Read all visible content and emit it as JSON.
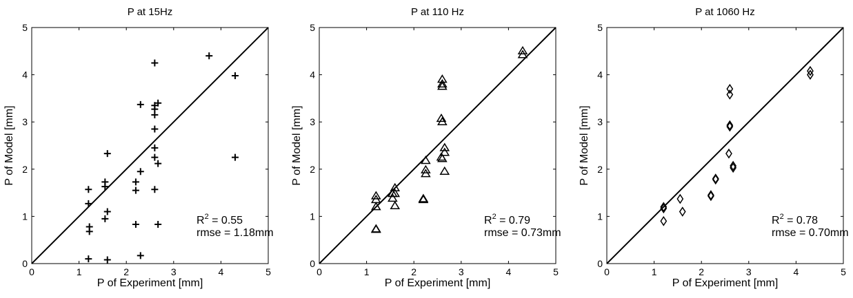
{
  "chart_data": [
    {
      "type": "scatter",
      "title": "P at 15Hz",
      "xlabel": "P of Experiment [mm]",
      "ylabel": "P of Model [mm]",
      "xlim": [
        0,
        5
      ],
      "ylim": [
        0,
        5
      ],
      "xticks": [
        "0",
        "1",
        "2",
        "3",
        "4",
        "5"
      ],
      "yticks": [
        "0",
        "1",
        "2",
        "3",
        "4",
        "5"
      ],
      "marker": "plus",
      "reference_line": "y = x",
      "grid": false,
      "stats": {
        "r2_label": "R",
        "r2_sup": "2",
        "r2_value": " = 0.55",
        "rmse": "rmse = 1.18mm"
      },
      "points": [
        [
          1.2,
          1.57
        ],
        [
          1.2,
          1.27
        ],
        [
          1.22,
          0.78
        ],
        [
          1.22,
          0.68
        ],
        [
          1.2,
          0.1
        ],
        [
          1.55,
          1.73
        ],
        [
          1.55,
          1.63
        ],
        [
          1.6,
          2.33
        ],
        [
          1.6,
          1.1
        ],
        [
          1.55,
          0.95
        ],
        [
          1.6,
          0.08
        ],
        [
          2.2,
          1.73
        ],
        [
          2.2,
          1.55
        ],
        [
          2.2,
          0.83
        ],
        [
          2.3,
          3.37
        ],
        [
          2.3,
          1.95
        ],
        [
          2.3,
          0.17
        ],
        [
          2.6,
          4.25
        ],
        [
          2.6,
          3.35
        ],
        [
          2.6,
          3.27
        ],
        [
          2.6,
          3.15
        ],
        [
          2.67,
          3.4
        ],
        [
          2.6,
          2.85
        ],
        [
          2.6,
          2.45
        ],
        [
          2.6,
          2.25
        ],
        [
          2.67,
          2.12
        ],
        [
          2.6,
          1.57
        ],
        [
          2.67,
          0.83
        ],
        [
          3.75,
          4.4
        ],
        [
          4.3,
          3.98
        ],
        [
          4.3,
          2.25
        ]
      ]
    },
    {
      "type": "scatter",
      "title": "P at 110 Hz",
      "xlabel": "P of Experiment [mm]",
      "ylabel": "P of Model [mm]",
      "xlim": [
        0,
        5
      ],
      "ylim": [
        0,
        5
      ],
      "xticks": [
        "0",
        "1",
        "2",
        "3",
        "4",
        "5"
      ],
      "yticks": [
        "0",
        "1",
        "2",
        "3",
        "4",
        "5"
      ],
      "marker": "triangle",
      "reference_line": "y = x",
      "grid": false,
      "stats": {
        "r2_label": "R",
        "r2_sup": "2",
        "r2_value": " = 0.79",
        "rmse": "rmse = 0.73mm"
      },
      "points": [
        [
          1.2,
          1.43
        ],
        [
          1.2,
          1.35
        ],
        [
          1.2,
          1.2
        ],
        [
          1.2,
          0.73
        ],
        [
          1.2,
          0.72
        ],
        [
          1.55,
          1.48
        ],
        [
          1.55,
          1.38
        ],
        [
          1.6,
          1.6
        ],
        [
          1.6,
          1.48
        ],
        [
          1.6,
          1.22
        ],
        [
          2.2,
          1.37
        ],
        [
          2.2,
          1.35
        ],
        [
          2.25,
          2.18
        ],
        [
          2.25,
          1.98
        ],
        [
          2.25,
          1.9
        ],
        [
          2.6,
          3.9
        ],
        [
          2.6,
          3.8
        ],
        [
          2.6,
          3.75
        ],
        [
          2.58,
          3.07
        ],
        [
          2.6,
          3.0
        ],
        [
          2.58,
          2.25
        ],
        [
          2.6,
          2.22
        ],
        [
          2.65,
          2.45
        ],
        [
          2.65,
          2.35
        ],
        [
          2.65,
          1.95
        ],
        [
          4.3,
          4.5
        ],
        [
          4.3,
          4.42
        ]
      ]
    },
    {
      "type": "scatter",
      "title": "P at 1060 Hz",
      "xlabel": "P of Experiment [mm]",
      "ylabel": "P of Model [mm]",
      "xlim": [
        0,
        5
      ],
      "ylim": [
        0,
        5
      ],
      "xticks": [
        "0",
        "1",
        "2",
        "3",
        "4",
        "5"
      ],
      "yticks": [
        "0",
        "1",
        "2",
        "3",
        "4",
        "5"
      ],
      "marker": "diamond",
      "reference_line": "y = x",
      "grid": false,
      "stats": {
        "r2_label": "R",
        "r2_sup": "2",
        "r2_value": " = 0.78",
        "rmse": "rmse = 0.70mm"
      },
      "points": [
        [
          1.2,
          1.2
        ],
        [
          1.2,
          1.17
        ],
        [
          1.2,
          0.9
        ],
        [
          1.55,
          1.37
        ],
        [
          1.6,
          1.1
        ],
        [
          2.2,
          1.45
        ],
        [
          2.2,
          1.43
        ],
        [
          2.3,
          1.8
        ],
        [
          2.3,
          1.78
        ],
        [
          2.6,
          3.7
        ],
        [
          2.6,
          3.58
        ],
        [
          2.6,
          2.93
        ],
        [
          2.6,
          2.9
        ],
        [
          2.58,
          2.33
        ],
        [
          2.67,
          2.07
        ],
        [
          2.67,
          2.03
        ],
        [
          4.3,
          4.08
        ],
        [
          4.3,
          4.0
        ]
      ]
    }
  ]
}
